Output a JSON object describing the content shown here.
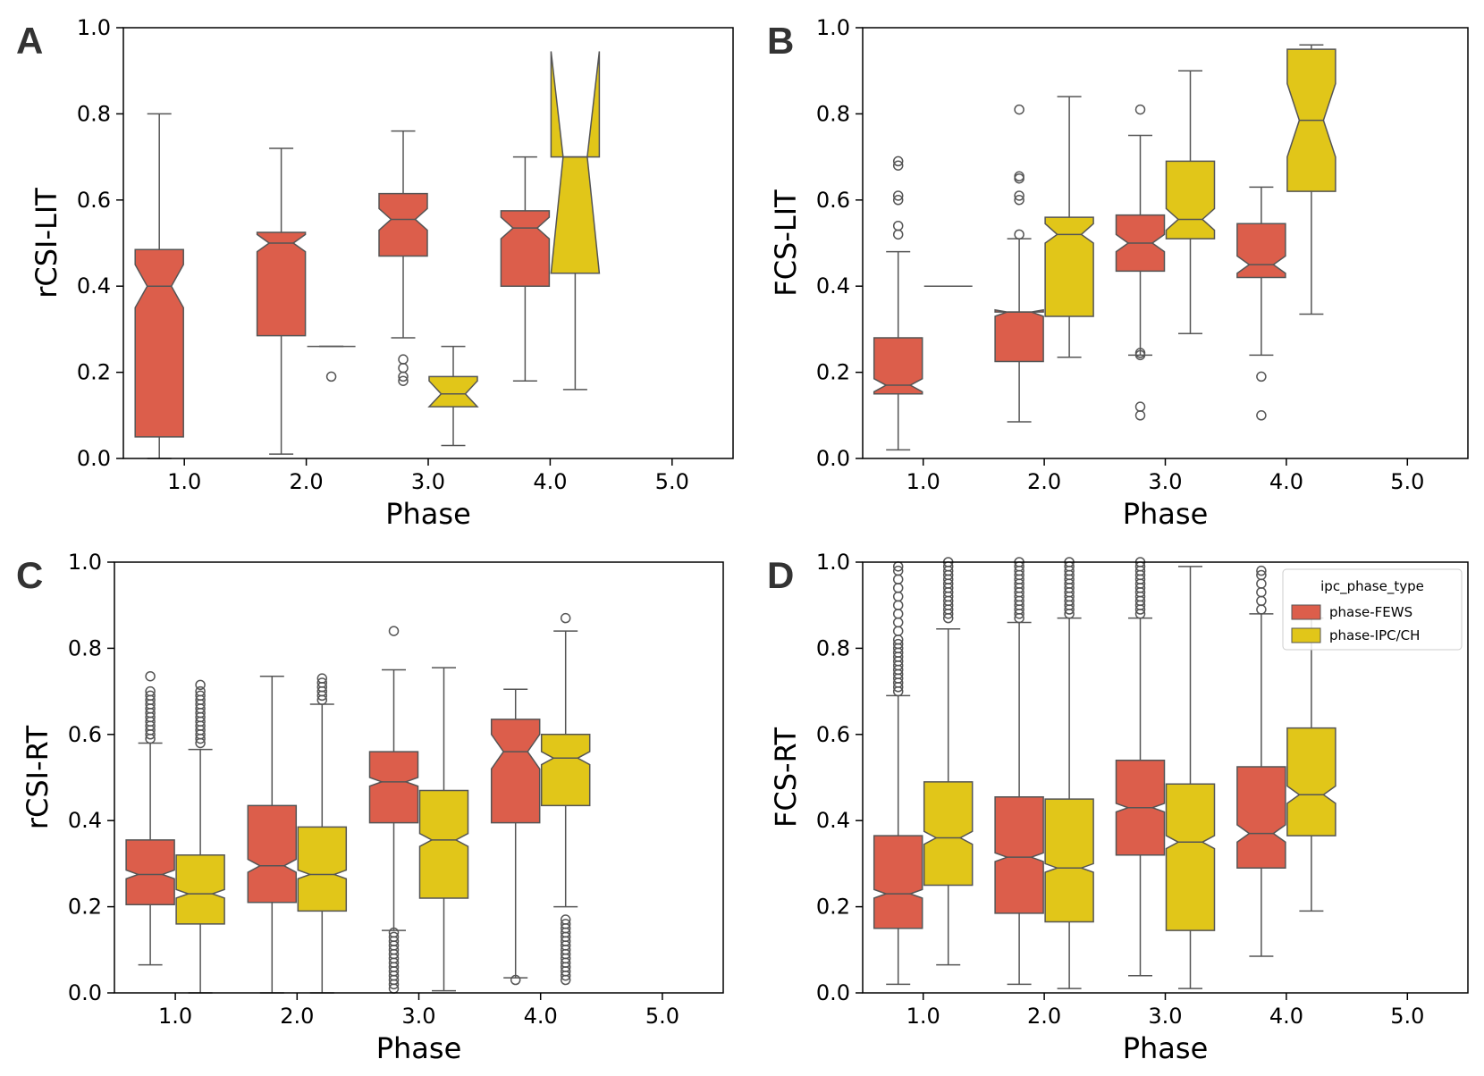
{
  "colors": {
    "phase-FEWS": "#dc5e4b",
    "phase-IPC/CH": "#e1c619",
    "outline": "#555555"
  },
  "chart_data": [
    {
      "panel": "A",
      "type": "boxplot",
      "notched": true,
      "xlabel": "Phase",
      "ylabel": "rCSI-LIT",
      "categories": [
        "1.0",
        "2.0",
        "3.0",
        "4.0",
        "5.0"
      ],
      "ylim": [
        0,
        1
      ],
      "yticks": [
        "0.0",
        "0.2",
        "0.4",
        "0.6",
        "0.8",
        "1.0"
      ],
      "series": [
        {
          "name": "phase-FEWS",
          "boxes": [
            {
              "cat": 0,
              "q1": 0.05,
              "med": 0.4,
              "q3": 0.485,
              "wlo": 0.0,
              "whi": 0.8,
              "ci": [
                0.35,
                0.45
              ],
              "out": []
            },
            {
              "cat": 1,
              "q1": 0.285,
              "med": 0.5,
              "q3": 0.525,
              "wlo": 0.01,
              "whi": 0.72,
              "ci": [
                0.48,
                0.52
              ],
              "out": []
            },
            {
              "cat": 2,
              "q1": 0.47,
              "med": 0.555,
              "q3": 0.615,
              "wlo": 0.28,
              "whi": 0.76,
              "ci": [
                0.53,
                0.58
              ],
              "out": [
                0.18,
                0.19,
                0.21,
                0.23
              ]
            },
            {
              "cat": 3,
              "q1": 0.4,
              "med": 0.535,
              "q3": 0.575,
              "wlo": 0.18,
              "whi": 0.7,
              "ci": [
                0.51,
                0.56
              ],
              "out": []
            }
          ]
        },
        {
          "name": "phase-IPC/CH",
          "boxes": [
            {
              "cat": 1,
              "q1": 0.26,
              "med": 0.26,
              "q3": 0.26,
              "wlo": 0.26,
              "whi": 0.26,
              "ci": [
                0.26,
                0.26
              ],
              "out": [
                0.19
              ]
            },
            {
              "cat": 2,
              "q1": 0.12,
              "med": 0.15,
              "q3": 0.19,
              "wlo": 0.03,
              "whi": 0.26,
              "ci": [
                0.12,
                0.18
              ],
              "out": []
            },
            {
              "cat": 3,
              "q1": 0.43,
              "med": 0.7,
              "q3": 0.7,
              "wlo": 0.16,
              "whi": 0.7,
              "ci": [
                0.43,
                0.945
              ],
              "out": []
            }
          ]
        }
      ]
    },
    {
      "panel": "B",
      "type": "boxplot",
      "notched": true,
      "xlabel": "Phase",
      "ylabel": "FCS-LIT",
      "categories": [
        "1.0",
        "2.0",
        "3.0",
        "4.0",
        "5.0"
      ],
      "ylim": [
        0,
        1
      ],
      "yticks": [
        "0.0",
        "0.2",
        "0.4",
        "0.6",
        "0.8",
        "1.0"
      ],
      "series": [
        {
          "name": "phase-FEWS",
          "boxes": [
            {
              "cat": 0,
              "q1": 0.15,
              "med": 0.17,
              "q3": 0.28,
              "wlo": 0.02,
              "whi": 0.48,
              "ci": [
                0.155,
                0.185
              ],
              "out": [
                0.52,
                0.54,
                0.6,
                0.61,
                0.68,
                0.69
              ]
            },
            {
              "cat": 1,
              "q1": 0.225,
              "med": 0.34,
              "q3": 0.34,
              "wlo": 0.085,
              "whi": 0.51,
              "ci": [
                0.33,
                0.345
              ],
              "out": [
                0.52,
                0.6,
                0.61,
                0.65,
                0.655,
                0.81
              ]
            },
            {
              "cat": 2,
              "q1": 0.435,
              "med": 0.5,
              "q3": 0.565,
              "wlo": 0.24,
              "whi": 0.75,
              "ci": [
                0.48,
                0.52
              ],
              "out": [
                0.1,
                0.12,
                0.24,
                0.245,
                0.81
              ]
            },
            {
              "cat": 3,
              "q1": 0.42,
              "med": 0.45,
              "q3": 0.545,
              "wlo": 0.24,
              "whi": 0.63,
              "ci": [
                0.43,
                0.47
              ],
              "out": [
                0.1,
                0.19
              ]
            }
          ]
        },
        {
          "name": "phase-IPC/CH",
          "boxes": [
            {
              "cat": 0,
              "q1": 0.4,
              "med": 0.4,
              "q3": 0.4,
              "wlo": 0.4,
              "whi": 0.4,
              "ci": [
                0.4,
                0.4
              ],
              "out": []
            },
            {
              "cat": 1,
              "q1": 0.33,
              "med": 0.52,
              "q3": 0.56,
              "wlo": 0.235,
              "whi": 0.84,
              "ci": [
                0.5,
                0.545
              ],
              "out": []
            },
            {
              "cat": 2,
              "q1": 0.51,
              "med": 0.555,
              "q3": 0.69,
              "wlo": 0.29,
              "whi": 0.9,
              "ci": [
                0.53,
                0.58
              ],
              "out": []
            },
            {
              "cat": 3,
              "q1": 0.62,
              "med": 0.785,
              "q3": 0.95,
              "wlo": 0.335,
              "whi": 0.96,
              "ci": [
                0.7,
                0.87
              ],
              "out": []
            }
          ]
        }
      ]
    },
    {
      "panel": "C",
      "type": "boxplot",
      "notched": true,
      "xlabel": "Phase",
      "ylabel": "rCSI-RT",
      "categories": [
        "1.0",
        "2.0",
        "3.0",
        "4.0",
        "5.0"
      ],
      "ylim": [
        0,
        1
      ],
      "yticks": [
        "0.0",
        "0.2",
        "0.4",
        "0.6",
        "0.8",
        "1.0"
      ],
      "series": [
        {
          "name": "phase-FEWS",
          "boxes": [
            {
              "cat": 0,
              "q1": 0.205,
              "med": 0.275,
              "q3": 0.355,
              "wlo": 0.065,
              "whi": 0.58,
              "ci": [
                0.265,
                0.285
              ],
              "out": [
                0.59,
                0.6,
                0.61,
                0.62,
                0.63,
                0.64,
                0.65,
                0.66,
                0.67,
                0.68,
                0.69,
                0.7,
                0.735
              ]
            },
            {
              "cat": 1,
              "q1": 0.21,
              "med": 0.295,
              "q3": 0.435,
              "wlo": 0.0,
              "whi": 0.735,
              "ci": [
                0.28,
                0.31
              ],
              "out": []
            },
            {
              "cat": 2,
              "q1": 0.395,
              "med": 0.49,
              "q3": 0.56,
              "wlo": 0.145,
              "whi": 0.75,
              "ci": [
                0.48,
                0.5
              ],
              "out": [
                0.01,
                0.02,
                0.03,
                0.04,
                0.05,
                0.06,
                0.07,
                0.08,
                0.09,
                0.1,
                0.11,
                0.12,
                0.13,
                0.14,
                0.84
              ]
            },
            {
              "cat": 3,
              "q1": 0.395,
              "med": 0.56,
              "q3": 0.635,
              "wlo": 0.035,
              "whi": 0.705,
              "ci": [
                0.52,
                0.6
              ],
              "out": [
                0.03
              ]
            }
          ]
        },
        {
          "name": "phase-IPC/CH",
          "boxes": [
            {
              "cat": 0,
              "q1": 0.16,
              "med": 0.23,
              "q3": 0.32,
              "wlo": 0.0,
              "whi": 0.565,
              "ci": [
                0.22,
                0.24
              ],
              "out": [
                0.58,
                0.59,
                0.6,
                0.61,
                0.62,
                0.63,
                0.64,
                0.65,
                0.66,
                0.67,
                0.68,
                0.69,
                0.7,
                0.715
              ]
            },
            {
              "cat": 1,
              "q1": 0.19,
              "med": 0.275,
              "q3": 0.385,
              "wlo": 0.0,
              "whi": 0.67,
              "ci": [
                0.265,
                0.285
              ],
              "out": [
                0.68,
                0.69,
                0.7,
                0.71,
                0.72,
                0.73
              ]
            },
            {
              "cat": 2,
              "q1": 0.22,
              "med": 0.355,
              "q3": 0.47,
              "wlo": 0.005,
              "whi": 0.755,
              "ci": [
                0.34,
                0.37
              ],
              "out": []
            },
            {
              "cat": 3,
              "q1": 0.435,
              "med": 0.545,
              "q3": 0.6,
              "wlo": 0.2,
              "whi": 0.84,
              "ci": [
                0.53,
                0.56
              ],
              "out": [
                0.03,
                0.04,
                0.05,
                0.06,
                0.07,
                0.08,
                0.09,
                0.1,
                0.11,
                0.12,
                0.13,
                0.14,
                0.15,
                0.16,
                0.17,
                0.87
              ]
            }
          ]
        }
      ]
    },
    {
      "panel": "D",
      "type": "boxplot",
      "notched": true,
      "xlabel": "Phase",
      "ylabel": "FCS-RT",
      "categories": [
        "1.0",
        "2.0",
        "3.0",
        "4.0",
        "5.0"
      ],
      "ylim": [
        0,
        1
      ],
      "yticks": [
        "0.0",
        "0.2",
        "0.4",
        "0.6",
        "0.8",
        "1.0"
      ],
      "legend": {
        "title": "ipc_phase_type",
        "entries": [
          "phase-FEWS",
          "phase-IPC/CH"
        ],
        "loc": "upper right"
      },
      "series": [
        {
          "name": "phase-FEWS",
          "boxes": [
            {
              "cat": 0,
              "q1": 0.15,
              "med": 0.23,
              "q3": 0.365,
              "wlo": 0.02,
              "whi": 0.69,
              "ci": [
                0.22,
                0.24
              ],
              "out": [
                0.7,
                0.71,
                0.72,
                0.73,
                0.74,
                0.75,
                0.76,
                0.77,
                0.78,
                0.79,
                0.8,
                0.81,
                0.82,
                0.84,
                0.86,
                0.88,
                0.9,
                0.92,
                0.94,
                0.96,
                0.98,
                0.99
              ]
            },
            {
              "cat": 1,
              "q1": 0.185,
              "med": 0.315,
              "q3": 0.455,
              "wlo": 0.02,
              "whi": 0.86,
              "ci": [
                0.305,
                0.325
              ],
              "out": [
                0.87,
                0.88,
                0.89,
                0.9,
                0.91,
                0.92,
                0.93,
                0.94,
                0.95,
                0.96,
                0.97,
                0.98,
                0.99,
                1.0
              ]
            },
            {
              "cat": 2,
              "q1": 0.32,
              "med": 0.43,
              "q3": 0.54,
              "wlo": 0.04,
              "whi": 0.87,
              "ci": [
                0.42,
                0.44
              ],
              "out": [
                0.88,
                0.89,
                0.9,
                0.91,
                0.92,
                0.93,
                0.94,
                0.95,
                0.96,
                0.97,
                0.98,
                0.99,
                1.0
              ]
            },
            {
              "cat": 3,
              "q1": 0.29,
              "med": 0.37,
              "q3": 0.525,
              "wlo": 0.085,
              "whi": 0.88,
              "ci": [
                0.35,
                0.39
              ],
              "out": [
                0.89,
                0.91,
                0.93,
                0.95,
                0.97,
                0.98
              ]
            }
          ]
        },
        {
          "name": "phase-IPC/CH",
          "boxes": [
            {
              "cat": 0,
              "q1": 0.25,
              "med": 0.36,
              "q3": 0.49,
              "wlo": 0.065,
              "whi": 0.845,
              "ci": [
                0.345,
                0.375
              ],
              "out": [
                0.87,
                0.88,
                0.89,
                0.9,
                0.91,
                0.92,
                0.93,
                0.94,
                0.95,
                0.96,
                0.97,
                0.98,
                0.99,
                1.0
              ]
            },
            {
              "cat": 1,
              "q1": 0.165,
              "med": 0.29,
              "q3": 0.45,
              "wlo": 0.01,
              "whi": 0.87,
              "ci": [
                0.28,
                0.3
              ],
              "out": [
                0.88,
                0.89,
                0.9,
                0.91,
                0.92,
                0.93,
                0.94,
                0.95,
                0.96,
                0.97,
                0.98,
                0.99,
                1.0
              ]
            },
            {
              "cat": 2,
              "q1": 0.145,
              "med": 0.35,
              "q3": 0.485,
              "wlo": 0.01,
              "whi": 0.99,
              "ci": [
                0.335,
                0.365
              ],
              "out": []
            },
            {
              "cat": 3,
              "q1": 0.365,
              "med": 0.46,
              "q3": 0.615,
              "wlo": 0.19,
              "whi": 0.87,
              "ci": [
                0.44,
                0.48
              ],
              "out": []
            }
          ]
        }
      ]
    }
  ]
}
